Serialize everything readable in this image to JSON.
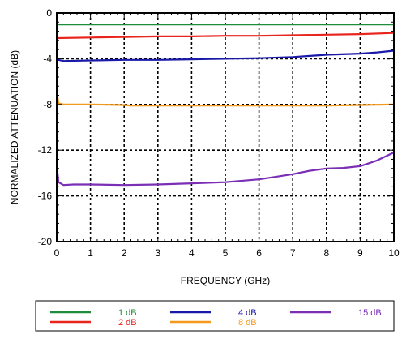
{
  "chart_data": {
    "type": "line",
    "xlabel": "FREQUENCY (GHz)",
    "ylabel": "NORMALIZED ATTENUATION (dB)",
    "xlim": [
      0,
      10
    ],
    "ylim": [
      -20,
      0
    ],
    "x_ticks": [
      "0",
      "1",
      "2",
      "3",
      "4",
      "5",
      "6",
      "7",
      "8",
      "9",
      "10"
    ],
    "y_ticks": [
      "0",
      "-4",
      "-8",
      "-12",
      "-16",
      "-20"
    ],
    "grid": true,
    "legend_position": "bottom",
    "series": [
      {
        "name": "1 dB",
        "color": "#1e8c3a",
        "x": [
          0,
          1,
          2,
          3,
          4,
          5,
          6,
          7,
          8,
          9,
          10
        ],
        "y": [
          -1.0,
          -1.0,
          -1.0,
          -1.0,
          -1.0,
          -1.0,
          -1.0,
          -1.0,
          -1.0,
          -1.0,
          -1.0
        ]
      },
      {
        "name": "2 dB",
        "color": "#e8251c",
        "x": [
          0,
          1,
          2,
          3,
          4,
          5,
          6,
          7,
          8,
          9,
          10
        ],
        "y": [
          -2.2,
          -2.15,
          -2.1,
          -2.05,
          -2.05,
          -2.0,
          -2.0,
          -1.95,
          -1.9,
          -1.85,
          -1.75
        ]
      },
      {
        "name": "4 dB",
        "color": "#1a1aa8",
        "x": [
          0,
          0.05,
          0.2,
          1,
          2,
          3,
          4,
          5,
          6,
          7,
          8,
          9,
          9.5,
          10
        ],
        "y": [
          -3.8,
          -4.1,
          -4.2,
          -4.15,
          -4.1,
          -4.1,
          -4.05,
          -4.0,
          -3.95,
          -3.85,
          -3.65,
          -3.55,
          -3.45,
          -3.3
        ]
      },
      {
        "name": "8 dB",
        "color": "#f39a1e",
        "x": [
          0,
          0.05,
          0.2,
          1,
          2,
          2.2,
          3,
          4,
          5,
          6,
          7,
          8,
          9,
          10
        ],
        "y": [
          -6.8,
          -7.9,
          -8.0,
          -8.0,
          -8.05,
          -8.1,
          -8.1,
          -8.1,
          -8.1,
          -8.1,
          -8.1,
          -8.1,
          -8.05,
          -8.0
        ]
      },
      {
        "name": "15 dB",
        "color": "#7a2fb5",
        "x": [
          0,
          0.05,
          0.2,
          0.5,
          1,
          2,
          3,
          4,
          5,
          6,
          7,
          7.5,
          8,
          8.5,
          9,
          9.5,
          10
        ],
        "y": [
          -13.2,
          -14.8,
          -15.05,
          -15.0,
          -15.0,
          -15.05,
          -15.0,
          -14.9,
          -14.8,
          -14.55,
          -14.1,
          -13.8,
          -13.6,
          -13.55,
          -13.4,
          -12.9,
          -12.2
        ]
      }
    ]
  }
}
